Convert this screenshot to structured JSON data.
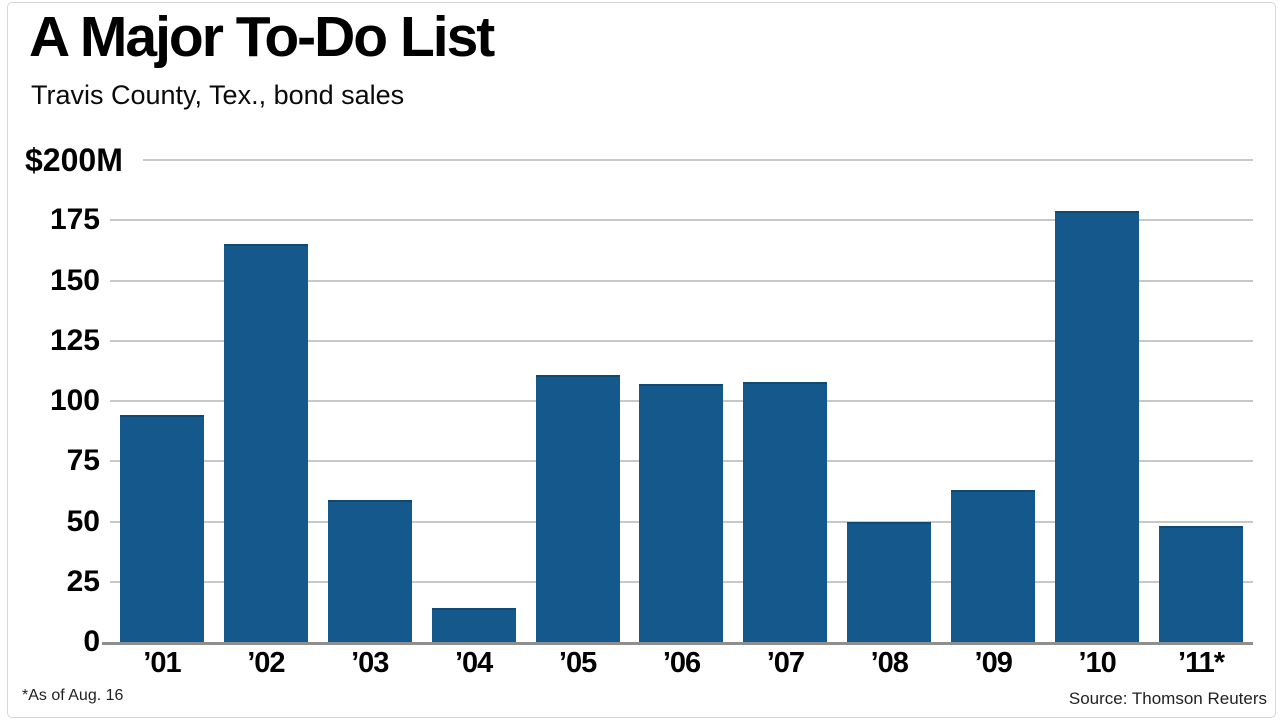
{
  "header": {
    "title": "A Major To-Do List",
    "subtitle": "Travis County, Tex., bond sales"
  },
  "footer": {
    "footnote": "*As of Aug. 16",
    "source": "Source: Thomson Reuters"
  },
  "colors": {
    "bar": "#15588c",
    "bar_top_edge": "#0f4a73",
    "gridline": "#c8c8c8",
    "baseline": "#8e8e8e",
    "text": "#000000"
  },
  "chart_data": {
    "type": "bar",
    "title": "A Major To-Do List",
    "subtitle": "Travis County, Tex., bond sales",
    "unit": "millions of dollars",
    "categories": [
      "’01",
      "’02",
      "’03",
      "’04",
      "’05",
      "’06",
      "’07",
      "’08",
      "’09",
      "’10",
      "’11*"
    ],
    "values": [
      94,
      165,
      59,
      14,
      111,
      107,
      108,
      50,
      63,
      179,
      48
    ],
    "ylim": [
      0,
      200
    ],
    "yticks": [
      {
        "value": 200,
        "label": "$200M"
      },
      {
        "value": 175,
        "label": "175"
      },
      {
        "value": 150,
        "label": "150"
      },
      {
        "value": 125,
        "label": "125"
      },
      {
        "value": 100,
        "label": "100"
      },
      {
        "value": 75,
        "label": "75"
      },
      {
        "value": 50,
        "label": "50"
      },
      {
        "value": 25,
        "label": "25"
      },
      {
        "value": 0,
        "label": "0"
      }
    ],
    "grid": true,
    "legend_position": "none",
    "footnote": "*As of Aug. 16",
    "source": "Source: Thomson Reuters"
  }
}
